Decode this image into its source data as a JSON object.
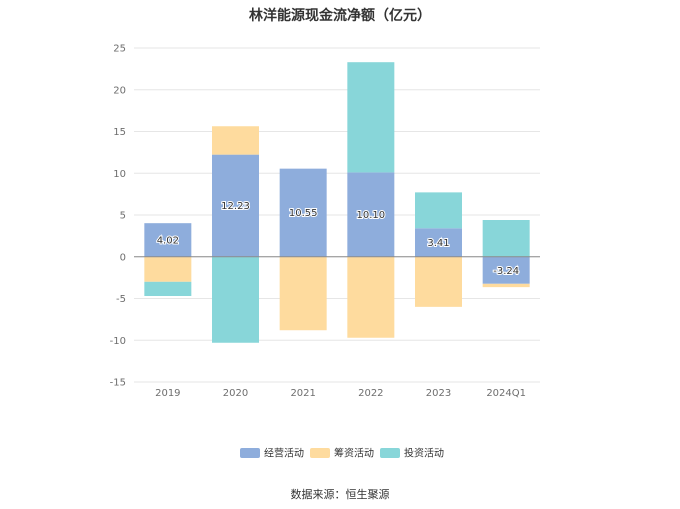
{
  "title": "林洋能源现金流净额（亿元）",
  "source": "数据来源：恒生聚源",
  "chart_data": {
    "type": "bar",
    "stacked": true,
    "categories": [
      "2019",
      "2020",
      "2021",
      "2022",
      "2023",
      "2024Q1"
    ],
    "series": [
      {
        "name": "经营活动",
        "color": "#8eaddc",
        "values": [
          4.02,
          12.23,
          10.55,
          10.1,
          3.41,
          -3.24
        ],
        "labels": [
          "4.02",
          "12.23",
          "10.55",
          "10.10",
          "3.41",
          "-3.24"
        ]
      },
      {
        "name": "筹资活动",
        "color": "#fedb9e",
        "values": [
          -3.0,
          3.4,
          -8.8,
          -9.7,
          -6.0,
          -0.4
        ]
      },
      {
        "name": "投资活动",
        "color": "#88d6d9",
        "values": [
          -1.7,
          -10.3,
          0,
          13.2,
          4.3,
          4.4
        ]
      }
    ],
    "y_ticks": [
      "25",
      "20",
      "15",
      "10",
      "5",
      "0",
      "-5",
      "-10",
      "-15"
    ],
    "ylim": [
      -15,
      25
    ],
    "grid": true,
    "legend_position": "bottom"
  }
}
